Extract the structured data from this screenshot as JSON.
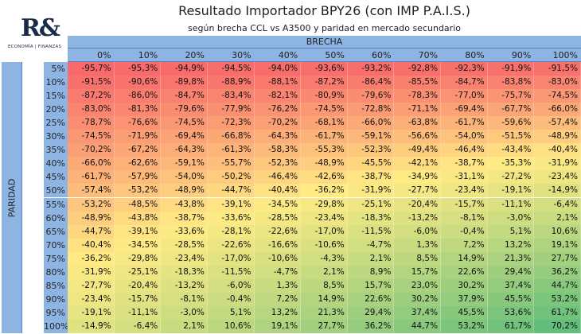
{
  "logo": {
    "mark": "R&",
    "text": "ECONOMÍA | FINANZAS"
  },
  "header": {
    "title": "Resultado Importador BPY26 (con IMP P.A.I.S.)",
    "subtitle": "según brecha CCL vs A3500 y paridad en mercado secundario"
  },
  "table": {
    "column_group": "BRECHA",
    "row_group": "PARIDAD",
    "columns": [
      "0%",
      "10%",
      "20%",
      "30%",
      "40%",
      "50%",
      "60%",
      "70%",
      "80%",
      "90%",
      "100%"
    ],
    "color_scale": {
      "min_color": "#f8696b",
      "mid_color": "#ffeb84",
      "max_color": "#63be7b"
    },
    "rows": [
      {
        "label": "5%",
        "values": [
          "-95,7%",
          "-95,3%",
          "-94,9%",
          "-94,5%",
          "-94,0%",
          "-93,6%",
          "-93,2%",
          "-92,8%",
          "-92,3%",
          "-91,9%",
          "-91,5%"
        ]
      },
      {
        "label": "10%",
        "values": [
          "-91,5%",
          "-90,6%",
          "-89,8%",
          "-88,9%",
          "-88,1%",
          "-87,2%",
          "-86,4%",
          "-85,5%",
          "-84,7%",
          "-83,8%",
          "-83,0%"
        ]
      },
      {
        "label": "15%",
        "values": [
          "-87,2%",
          "-86,0%",
          "-84,7%",
          "-83,4%",
          "-82,1%",
          "-80,9%",
          "-79,6%",
          "-78,3%",
          "-77,0%",
          "-75,7%",
          "-74,5%"
        ]
      },
      {
        "label": "20%",
        "values": [
          "-83,0%",
          "-81,3%",
          "-79,6%",
          "-77,9%",
          "-76,2%",
          "-74,5%",
          "-72,8%",
          "-71,1%",
          "-69,4%",
          "-67,7%",
          "-66,0%"
        ]
      },
      {
        "label": "25%",
        "values": [
          "-78,7%",
          "-76,6%",
          "-74,5%",
          "-72,3%",
          "-70,2%",
          "-68,1%",
          "-66,0%",
          "-63,8%",
          "-61,7%",
          "-59,6%",
          "-57,4%"
        ]
      },
      {
        "label": "30%",
        "values": [
          "-74,5%",
          "-71,9%",
          "-69,4%",
          "-66,8%",
          "-64,3%",
          "-61,7%",
          "-59,1%",
          "-56,6%",
          "-54,0%",
          "-51,5%",
          "-48,9%"
        ]
      },
      {
        "label": "35%",
        "values": [
          "-70,2%",
          "-67,2%",
          "-64,3%",
          "-61,3%",
          "-58,3%",
          "-55,3%",
          "-52,3%",
          "-49,4%",
          "-46,4%",
          "-43,4%",
          "-40,4%"
        ]
      },
      {
        "label": "40%",
        "values": [
          "-66,0%",
          "-62,6%",
          "-59,1%",
          "-55,7%",
          "-52,3%",
          "-48,9%",
          "-45,5%",
          "-42,1%",
          "-38,7%",
          "-35,3%",
          "-31,9%"
        ]
      },
      {
        "label": "45%",
        "values": [
          "-61,7%",
          "-57,9%",
          "-54,0%",
          "-50,2%",
          "-46,4%",
          "-42,6%",
          "-38,7%",
          "-34,9%",
          "-31,1%",
          "-27,2%",
          "-23,4%"
        ]
      },
      {
        "label": "50%",
        "values": [
          "-57,4%",
          "-53,2%",
          "-48,9%",
          "-44,7%",
          "-40,4%",
          "-36,2%",
          "-31,9%",
          "-27,7%",
          "-23,4%",
          "-19,1%",
          "-14,9%"
        ]
      },
      {
        "label": "55%",
        "values": [
          "-53,2%",
          "-48,5%",
          "-43,8%",
          "-39,1%",
          "-34,5%",
          "-29,8%",
          "-25,1%",
          "-20,4%",
          "-15,7%",
          "-11,1%",
          "-6,4%"
        ]
      },
      {
        "label": "60%",
        "values": [
          "-48,9%",
          "-43,8%",
          "-38,7%",
          "-33,6%",
          "-28,5%",
          "-23,4%",
          "-18,3%",
          "-13,2%",
          "-8,1%",
          "-3,0%",
          "2,1%"
        ]
      },
      {
        "label": "65%",
        "values": [
          "-44,7%",
          "-39,1%",
          "-33,6%",
          "-28,1%",
          "-22,6%",
          "-17,0%",
          "-11,5%",
          "-6,0%",
          "-0,4%",
          "5,1%",
          "10,6%"
        ]
      },
      {
        "label": "70%",
        "values": [
          "-40,4%",
          "-34,5%",
          "-28,5%",
          "-22,6%",
          "-16,6%",
          "-10,6%",
          "-4,7%",
          "1,3%",
          "7,2%",
          "13,2%",
          "19,1%"
        ]
      },
      {
        "label": "75%",
        "values": [
          "-36,2%",
          "-29,8%",
          "-23,4%",
          "-17,0%",
          "-10,6%",
          "-4,3%",
          "2,1%",
          "8,5%",
          "14,9%",
          "21,3%",
          "27,7%"
        ]
      },
      {
        "label": "80%",
        "values": [
          "-31,9%",
          "-25,1%",
          "-18,3%",
          "-11,5%",
          "-4,7%",
          "2,1%",
          "8,9%",
          "15,7%",
          "22,6%",
          "29,4%",
          "36,2%"
        ]
      },
      {
        "label": "85%",
        "values": [
          "-27,7%",
          "-20,4%",
          "-13,2%",
          "-6,0%",
          "1,3%",
          "8,5%",
          "15,7%",
          "23,0%",
          "30,2%",
          "37,4%",
          "44,7%"
        ]
      },
      {
        "label": "90%",
        "values": [
          "-23,4%",
          "-15,7%",
          "-8,1%",
          "-0,4%",
          "7,2%",
          "14,9%",
          "22,6%",
          "30,2%",
          "37,9%",
          "45,5%",
          "53,2%"
        ]
      },
      {
        "label": "95%",
        "values": [
          "-19,1%",
          "-11,1%",
          "-3,0%",
          "5,1%",
          "13,2%",
          "21,3%",
          "29,4%",
          "37,4%",
          "45,5%",
          "53,6%",
          "61,7%"
        ]
      },
      {
        "label": "100%",
        "values": [
          "-14,9%",
          "-6,4%",
          "2,1%",
          "10,6%",
          "19,1%",
          "27,7%",
          "36,2%",
          "44,7%",
          "53,2%",
          "61,7%",
          "70,2%"
        ]
      }
    ]
  }
}
